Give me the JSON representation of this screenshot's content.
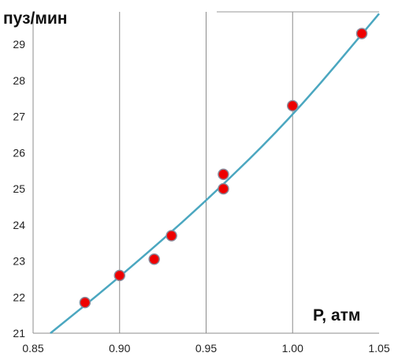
{
  "chart_data": {
    "type": "scatter",
    "title": "",
    "xlabel": "P, атм",
    "ylabel": "пуз/мин",
    "xlim": [
      0.85,
      1.05
    ],
    "ylim": [
      21,
      29.9
    ],
    "x_ticks": [
      "0.85",
      "0.90",
      "0.95",
      "1.00",
      "1.05"
    ],
    "y_ticks": [
      "21",
      "22",
      "23",
      "24",
      "25",
      "26",
      "27",
      "28",
      "29"
    ],
    "grid": "vertical",
    "series": [
      {
        "type": "scatter",
        "x": [
          0.88,
          0.9,
          0.92,
          0.93,
          0.96,
          0.96,
          1.0,
          1.04
        ],
        "y": [
          21.85,
          22.6,
          23.05,
          23.7,
          25.0,
          25.4,
          27.3,
          29.3
        ],
        "color": "#ee0000",
        "edge_color": "#8a8a9a"
      },
      {
        "type": "line",
        "x": [
          0.86,
          0.9,
          0.95,
          1.0,
          1.05
        ],
        "y": [
          21.0,
          22.55,
          24.65,
          27.0,
          29.85
        ],
        "color": "#4ba7c0"
      }
    ]
  }
}
